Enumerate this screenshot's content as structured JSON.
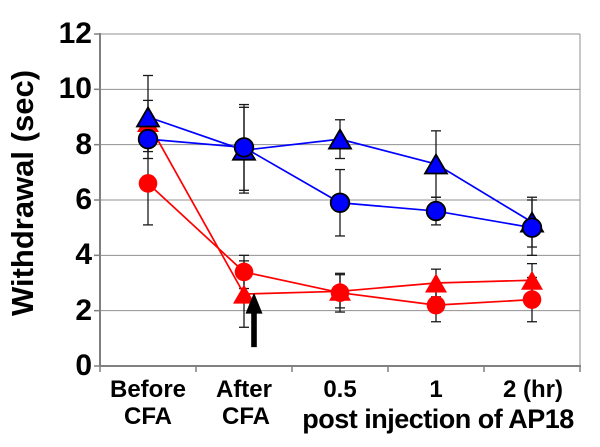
{
  "chart_data": {
    "type": "line",
    "title": "",
    "ylabel": "Withdrawal (sec)",
    "x_axis_caption": "post injection of AP18",
    "categories": [
      "Before CFA",
      "After CFA",
      "0.5",
      "1",
      "2 (hr)"
    ],
    "xtick_labels_row1": [
      "Before",
      "After",
      "0.5",
      "1",
      "2 (hr)"
    ],
    "xtick_labels_row2": [
      "CFA",
      "CFA"
    ],
    "yticks": [
      0,
      2,
      4,
      6,
      8,
      10,
      12
    ],
    "ylim": [
      0,
      12
    ],
    "grid": "horizontal",
    "legend": "none",
    "colors": {
      "blue": "#0000FF",
      "red": "#FF0000",
      "error_bar": "#1a1a1a",
      "grid": "#909090",
      "axis": "#808080",
      "text": "#000000",
      "annotation": "#000000"
    },
    "series": [
      {
        "name": "red-triangle",
        "marker": "triangle",
        "color": "#FF0000",
        "outline": "none",
        "values": [
          8.8,
          2.6,
          2.7,
          3.0,
          3.1
        ],
        "errors": [
          0.8,
          1.2,
          0.6,
          0.5,
          0.6
        ]
      },
      {
        "name": "red-circle",
        "marker": "circle",
        "color": "#FF0000",
        "outline": "none",
        "values": [
          6.6,
          3.4,
          2.65,
          2.2,
          2.4
        ],
        "errors": [
          1.5,
          0.6,
          0.7,
          0.6,
          0.8
        ]
      },
      {
        "name": "blue-triangle",
        "marker": "triangle",
        "color": "#0000FF",
        "outline": "#000000",
        "values": [
          9.0,
          7.8,
          8.2,
          7.3,
          5.2
        ],
        "errors": [
          1.5,
          1.55,
          0.7,
          1.2,
          0.9
        ]
      },
      {
        "name": "blue-circle",
        "marker": "circle",
        "color": "#0000FF",
        "outline": "#000000",
        "values": [
          8.2,
          7.9,
          5.9,
          5.6,
          5.0
        ],
        "errors": [
          0.45,
          1.55,
          1.2,
          0.5,
          1.0
        ]
      }
    ],
    "annotation": {
      "type": "up-arrow",
      "at_category": "After CFA",
      "category_index": 1,
      "x_offset": 10,
      "tip_value": 2.65,
      "base_value": 0.68,
      "color": "#000000"
    }
  }
}
